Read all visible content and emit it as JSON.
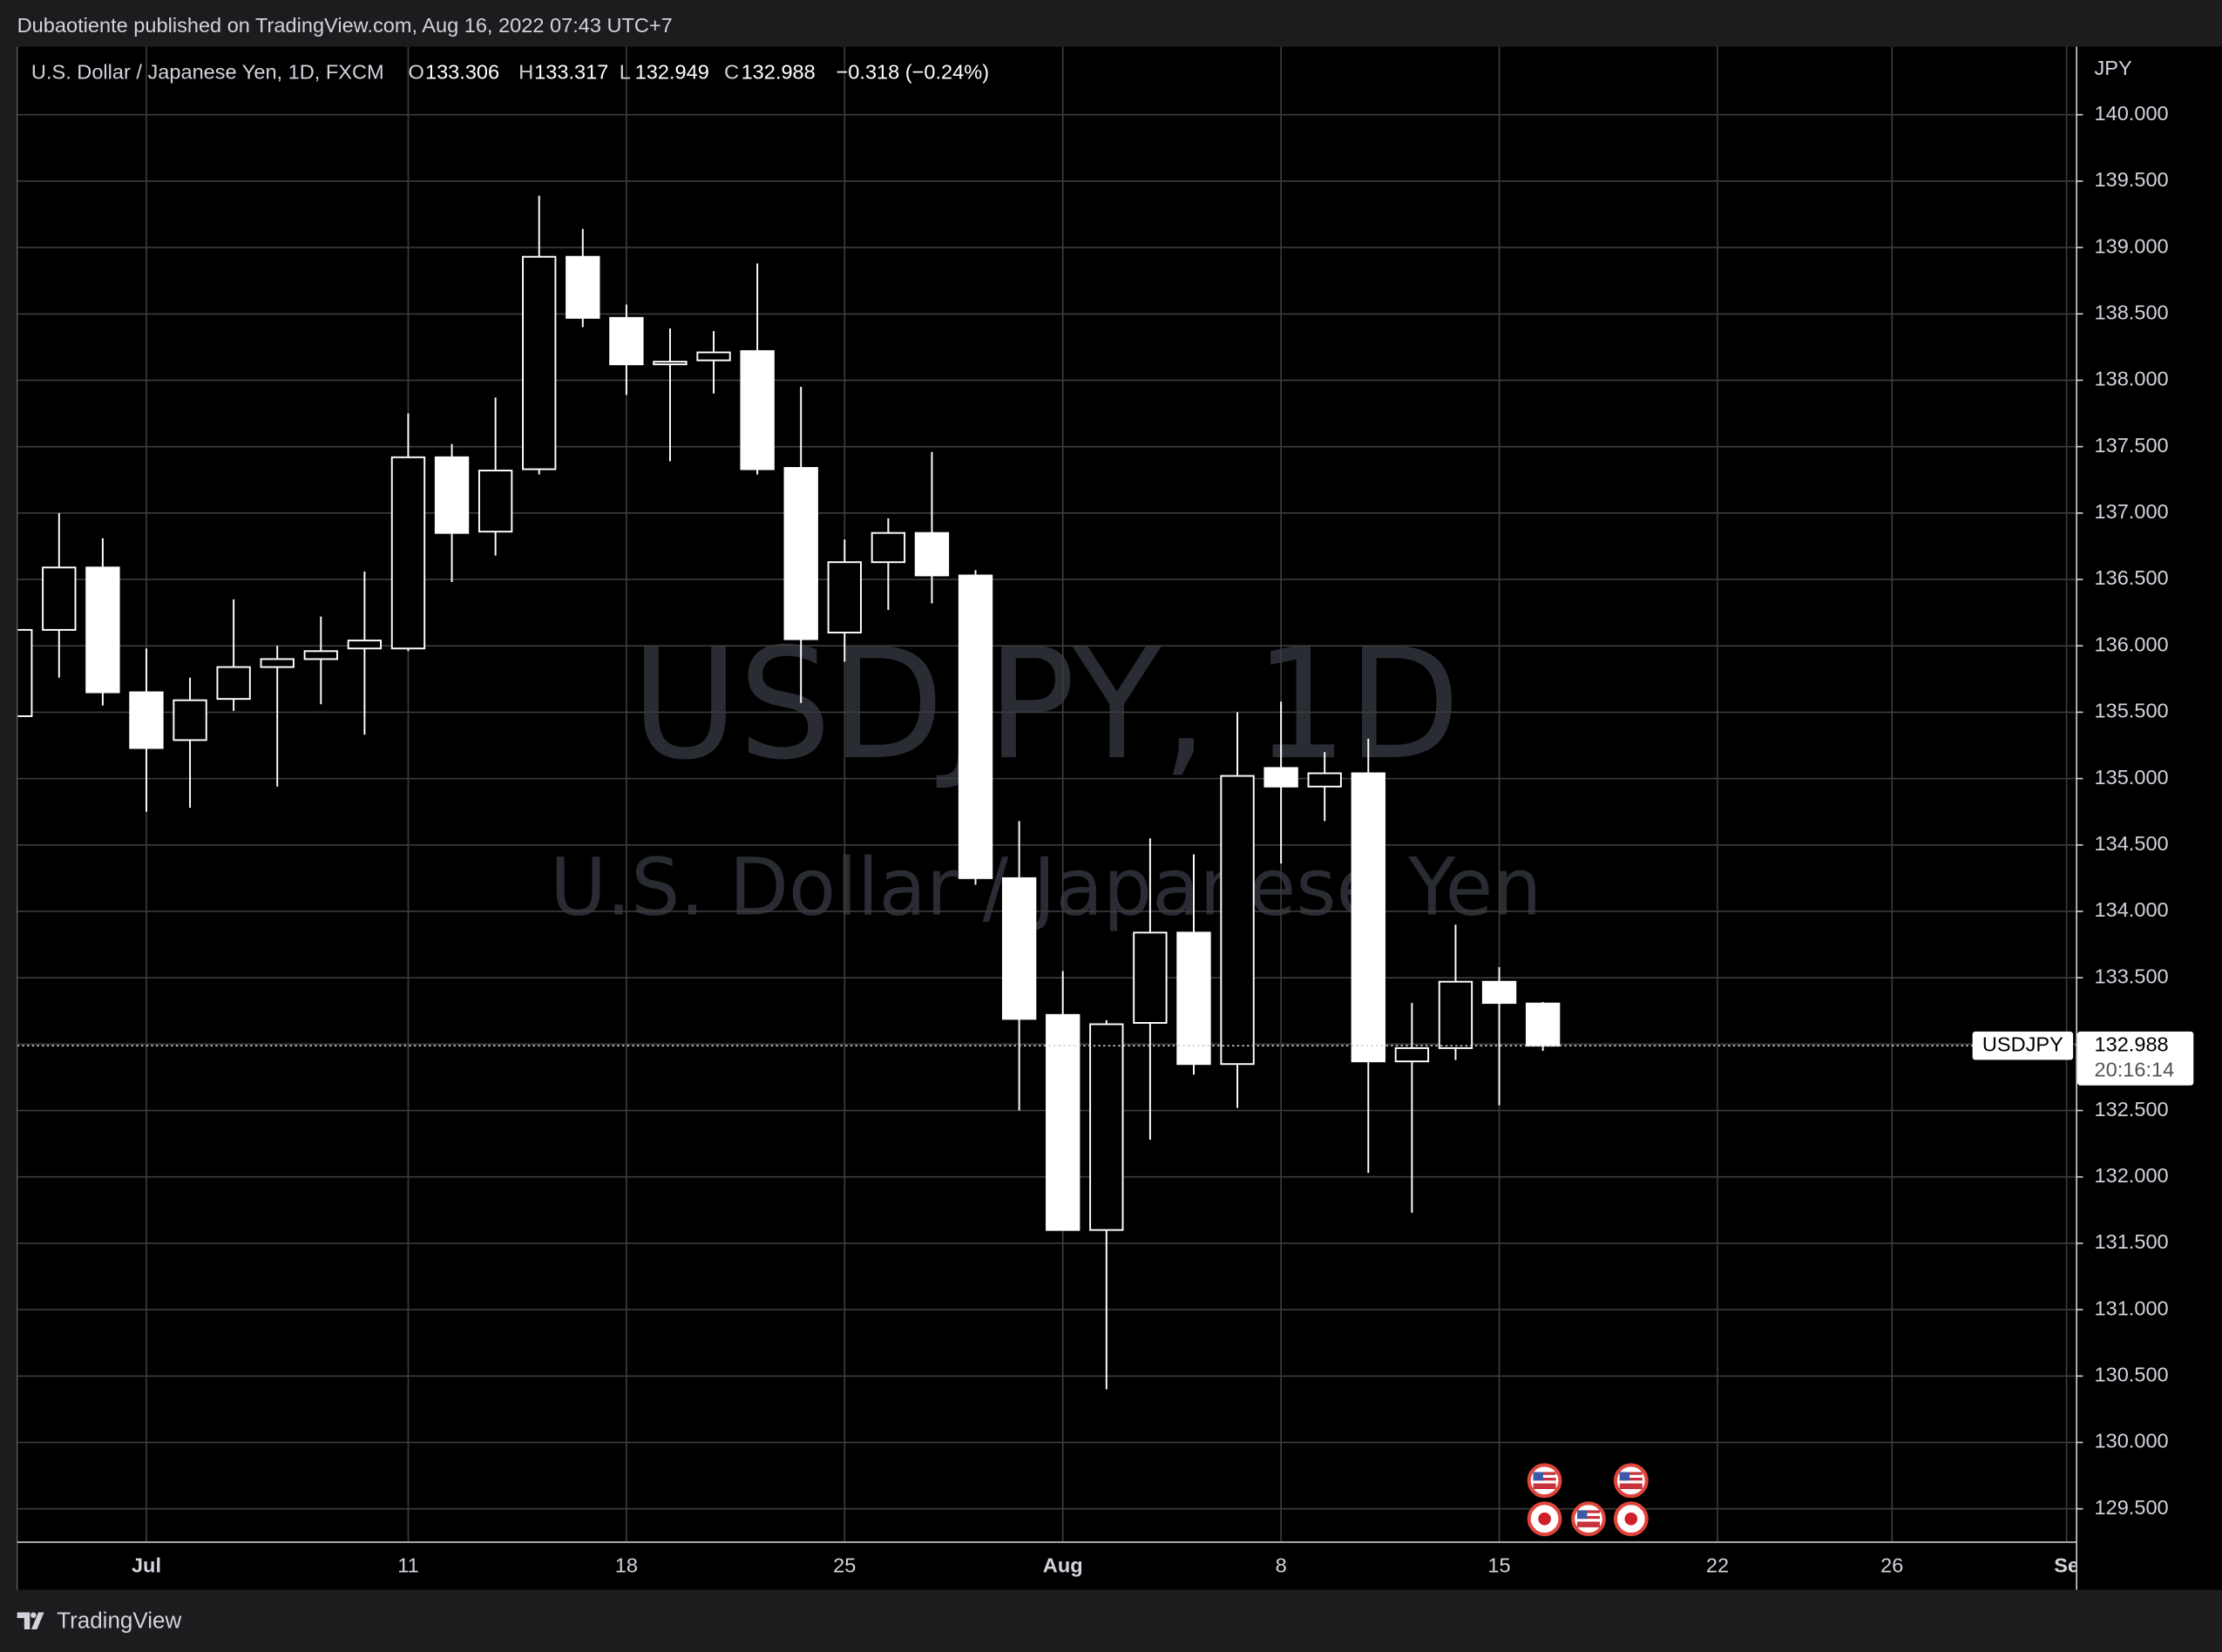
{
  "chart_data": {
    "type": "candlestick",
    "published": "Dubaotiente published on TradingView.com, Aug 16, 2022 07:43 UTC+7",
    "title": "U.S. Dollar / Japanese Yen, 1D, FXCM",
    "ohlc_letters": [
      "O",
      "H",
      "L",
      "C"
    ],
    "change_label": "−0.318 (−0.24%)",
    "watermark_symbol": "USDJPY, 1D",
    "watermark_name": "U.S. Dollar / Japanese Yen",
    "axis_unit": "JPY",
    "price_symbol": "USDJPY",
    "countdown": "20:16:14",
    "branding": "TradingView",
    "colors": {
      "up_body": "#000000",
      "down_body": "#ffffff",
      "outline": "#ffffff"
    },
    "grid": true,
    "categories": [
      null,
      null,
      null,
      "Jul",
      null,
      null,
      null,
      null,
      null,
      "11",
      null,
      null,
      null,
      null,
      "18",
      null,
      null,
      null,
      null,
      "25",
      null,
      null,
      null,
      null,
      "Aug",
      null,
      null,
      null,
      null,
      "8",
      null,
      null,
      null,
      null,
      "15",
      null,
      null,
      null,
      null,
      "22",
      null,
      null,
      null,
      "26",
      null,
      null,
      null,
      "Se"
    ],
    "open": [
      135.47,
      136.12,
      136.59,
      135.65,
      135.29,
      135.6,
      135.84,
      135.9,
      135.98,
      135.98,
      137.42,
      136.86,
      137.33,
      138.93,
      138.47,
      138.12,
      138.15,
      138.22,
      137.34,
      136.1,
      136.63,
      136.85,
      136.53,
      134.25,
      133.22,
      131.6,
      133.16,
      133.84,
      132.85,
      135.08,
      134.94,
      135.04,
      132.87,
      132.97,
      133.47,
      133.306,
      null,
      null,
      null,
      null,
      null,
      null,
      null,
      null,
      null,
      null,
      null,
      null
    ],
    "high": [
      136.15,
      137.0,
      136.81,
      135.98,
      135.76,
      136.35,
      136.0,
      136.22,
      136.56,
      137.75,
      137.52,
      137.87,
      139.39,
      139.14,
      138.57,
      138.39,
      138.37,
      138.88,
      137.95,
      136.8,
      136.96,
      137.46,
      136.57,
      134.68,
      133.55,
      133.18,
      134.55,
      134.43,
      135.5,
      135.58,
      135.2,
      135.3,
      133.31,
      133.9,
      133.58,
      133.317,
      null,
      null,
      null,
      null,
      null,
      null,
      null,
      null,
      null,
      null,
      null,
      null
    ],
    "low": [
      135.45,
      135.76,
      135.55,
      134.75,
      134.78,
      135.51,
      134.94,
      135.56,
      135.33,
      135.96,
      136.48,
      136.68,
      137.29,
      138.4,
      137.89,
      137.39,
      137.9,
      137.29,
      135.57,
      135.88,
      136.27,
      136.32,
      134.2,
      132.5,
      131.6,
      130.4,
      132.28,
      132.77,
      132.52,
      134.36,
      134.68,
      132.03,
      131.73,
      132.88,
      132.54,
      132.949,
      null,
      null,
      null,
      null,
      null,
      null,
      null,
      null,
      null,
      null,
      null,
      null
    ],
    "close": [
      136.12,
      136.59,
      135.65,
      135.23,
      135.59,
      135.84,
      135.9,
      135.96,
      136.04,
      137.42,
      136.85,
      137.32,
      138.93,
      138.47,
      138.12,
      138.14,
      138.21,
      137.33,
      136.05,
      136.63,
      136.85,
      136.53,
      134.25,
      133.19,
      131.6,
      133.15,
      133.84,
      132.85,
      135.02,
      134.94,
      135.04,
      132.87,
      132.97,
      133.47,
      133.31,
      132.988,
      null,
      null,
      null,
      null,
      null,
      null,
      null,
      null,
      null,
      null,
      null,
      null
    ],
    "ylim": [
      129.254,
      140.512
    ],
    "yticks": [
      {
        "value": 129.5,
        "label": "129.500"
      },
      {
        "value": 130,
        "label": "130.000"
      },
      {
        "value": 130.5,
        "label": "130.500"
      },
      {
        "value": 131,
        "label": "131.000"
      },
      {
        "value": 131.5,
        "label": "131.500"
      },
      {
        "value": 132,
        "label": "132.000"
      },
      {
        "value": 132.5,
        "label": "132.500"
      },
      {
        "value": 133,
        "label": "133.000"
      },
      {
        "value": 133.5,
        "label": "133.500"
      },
      {
        "value": 134,
        "label": "134.000"
      },
      {
        "value": 134.5,
        "label": "134.500"
      },
      {
        "value": 135,
        "label": "135.000"
      },
      {
        "value": 135.5,
        "label": "135.500"
      },
      {
        "value": 136,
        "label": "136.000"
      },
      {
        "value": 136.5,
        "label": "136.500"
      },
      {
        "value": 137,
        "label": "137.000"
      },
      {
        "value": 137.5,
        "label": "137.500"
      },
      {
        "value": 138,
        "label": "138.000"
      },
      {
        "value": 138.5,
        "label": "138.500"
      },
      {
        "value": 139,
        "label": "139.000"
      },
      {
        "value": 139.5,
        "label": "139.500"
      },
      {
        "value": 140,
        "label": "140.000"
      }
    ]
  }
}
